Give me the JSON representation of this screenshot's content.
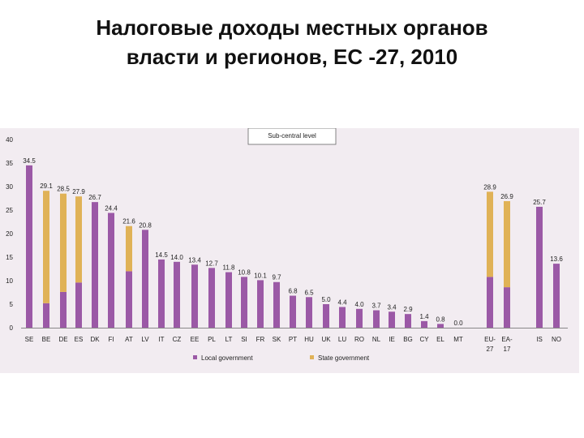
{
  "title": {
    "line1": "Налоговые доходы местных органов",
    "line2": "власти и регионов, ЕС -27, 2010"
  },
  "colors": {
    "local": "#9b59a6",
    "state": "#e0b257",
    "panel_background": "#f2ecf1"
  },
  "chart_data": {
    "type": "bar",
    "stacked": true,
    "subtitle": "Sub-central level",
    "ylim": [
      0,
      40
    ],
    "yticks": [
      "0",
      "5",
      "10",
      "15",
      "20",
      "25",
      "30",
      "35",
      "40"
    ],
    "grid": false,
    "legend_position": "bottom",
    "categories": [
      "SE",
      "BE",
      "DE",
      "ES",
      "DK",
      "FI",
      "AT",
      "LV",
      "IT",
      "CZ",
      "EE",
      "PL",
      "LT",
      "SI",
      "FR",
      "SK",
      "PT",
      "HU",
      "UK",
      "LU",
      "RO",
      "NL",
      "IE",
      "BG",
      "CY",
      "EL",
      "MT",
      "EU-27",
      "EA-17",
      "IS",
      "NO"
    ],
    "category_lines": {
      "EU-27": [
        "EU-",
        "27"
      ],
      "EA-17": [
        "EA-",
        "17"
      ]
    },
    "series": [
      {
        "name": "Local government",
        "color": "#9b59a6",
        "values": [
          34.5,
          5.2,
          7.6,
          9.6,
          26.7,
          24.4,
          12.0,
          20.8,
          14.5,
          14.0,
          13.4,
          12.7,
          11.8,
          10.8,
          10.1,
          9.7,
          6.8,
          6.5,
          5.0,
          4.4,
          4.0,
          3.7,
          3.4,
          2.9,
          1.4,
          0.8,
          0.0,
          10.8,
          8.6,
          25.7,
          13.6
        ]
      },
      {
        "name": "State government",
        "color": "#e0b257",
        "values": [
          0,
          23.9,
          20.9,
          18.3,
          0,
          0,
          9.6,
          0,
          0,
          0,
          0,
          0,
          0,
          0,
          0,
          0,
          0,
          0,
          0,
          0,
          0,
          0,
          0,
          0,
          0,
          0,
          0,
          18.1,
          18.3,
          0,
          0
        ]
      }
    ],
    "data_labels": [
      "34.5",
      "29.1",
      "28.5",
      "27.9",
      "26.7",
      "24.4",
      "21.6",
      "20.8",
      "14.5",
      "14.0",
      "13.4",
      "12.7",
      "11.8",
      "10.8",
      "10.1",
      "9.7",
      "6.8",
      "6.5",
      "5.0",
      "4.4",
      "4.0",
      "3.7",
      "3.4",
      "2.9",
      "1.4",
      "0.8",
      "0.0",
      "28.9",
      "26.9",
      "25.7",
      "13.6"
    ]
  }
}
